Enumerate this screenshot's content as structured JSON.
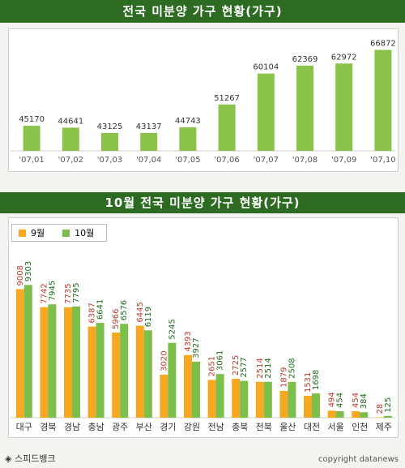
{
  "chart_data": [
    {
      "type": "bar",
      "title": "전국 미분양 가구 현황(가구)",
      "categories": [
        "'07,01",
        "'07,02",
        "'07,03",
        "'07,04",
        "'07,05",
        "'07,06",
        "'07,07",
        "'07,08",
        "'07,09",
        "'07,10"
      ],
      "values": [
        45170,
        44641,
        43125,
        43137,
        44743,
        51267,
        60104,
        62369,
        62972,
        66872
      ],
      "ylim": [
        38000,
        70000
      ],
      "grid": false,
      "color": "#8bc34a"
    },
    {
      "type": "bar",
      "title": "10월 전국 미분양 가구 현황(가구)",
      "categories": [
        "대구",
        "경북",
        "경남",
        "충남",
        "광주",
        "부산",
        "경기",
        "강원",
        "전남",
        "충북",
        "전북",
        "울산",
        "대전",
        "서울",
        "인천",
        "제주"
      ],
      "series": [
        {
          "name": "9월",
          "color": "#f7a823",
          "label_color": "#c0392b",
          "values": [
            9008,
            7742,
            7735,
            6387,
            5966,
            6445,
            3020,
            4393,
            2651,
            2725,
            2514,
            1879,
            1531,
            494,
            454,
            28
          ]
        },
        {
          "name": "10월",
          "color": "#7cbf4a",
          "label_color": "#1e6b1e",
          "values": [
            9303,
            7945,
            7795,
            6641,
            6576,
            6119,
            5245,
            3927,
            3061,
            2577,
            2514,
            2508,
            1698,
            454,
            384,
            125
          ]
        }
      ],
      "ylim": [
        0,
        10000
      ],
      "legend": "top-left",
      "grid": false
    }
  ],
  "footer": {
    "source": "◈ 스피드뱅크",
    "copyright": "copyright datanews"
  }
}
